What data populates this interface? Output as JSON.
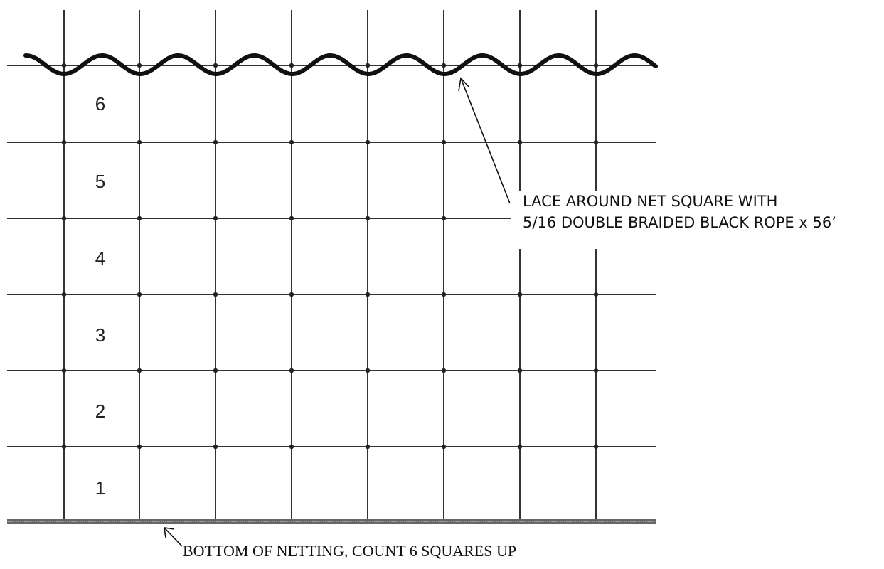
{
  "square_numbers": [
    "6",
    "5",
    "4",
    "3",
    "2",
    "1"
  ],
  "lace_callout": {
    "line1": "LACE AROUND NET SQUARE WITH",
    "line2": "5/16 DOUBLE BRAIDED BLACK ROPE x 56’"
  },
  "bottom_callout": "BOTTOM OF NETTING, COUNT 6 SQUARES UP",
  "colors": {
    "grid_line": "#333333",
    "rope": "#111111",
    "bottom_border": "#555555",
    "text": "#111111"
  },
  "grid": {
    "columns_of_squares": 8,
    "rows_of_squares": 6
  }
}
